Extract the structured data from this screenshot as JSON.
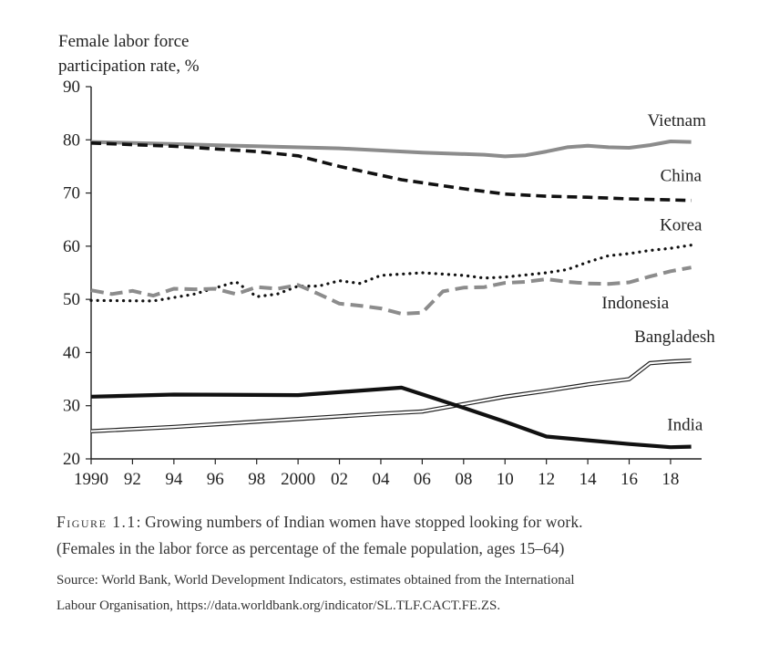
{
  "chart_data": {
    "type": "line",
    "ylabel": [
      "Female labor force",
      "participation rate, %"
    ],
    "ylim": [
      20,
      90
    ],
    "yticks": [
      20,
      30,
      40,
      50,
      60,
      70,
      80,
      90
    ],
    "xlim": [
      1990,
      2019.5
    ],
    "xticks": [
      {
        "value": 1990,
        "label": "1990"
      },
      {
        "value": 1992,
        "label": "92"
      },
      {
        "value": 1994,
        "label": "94"
      },
      {
        "value": 1996,
        "label": "96"
      },
      {
        "value": 1998,
        "label": "98"
      },
      {
        "value": 2000,
        "label": "2000"
      },
      {
        "value": 2002,
        "label": "02"
      },
      {
        "value": 2004,
        "label": "04"
      },
      {
        "value": 2006,
        "label": "06"
      },
      {
        "value": 2008,
        "label": "08"
      },
      {
        "value": 2010,
        "label": "10"
      },
      {
        "value": 2012,
        "label": "12"
      },
      {
        "value": 2014,
        "label": "14"
      },
      {
        "value": 2016,
        "label": "16"
      },
      {
        "value": 2018,
        "label": "18"
      }
    ],
    "series": [
      {
        "name": "Vietnam",
        "style": "solid-gray",
        "color": "#8c8c8c",
        "x": [
          1990,
          1994,
          1998,
          2002,
          2006,
          2009,
          2010,
          2011,
          2012,
          2013,
          2014,
          2015,
          2016,
          2017,
          2018,
          2019
        ],
        "y": [
          79.6,
          79.2,
          78.8,
          78.4,
          77.6,
          77.2,
          76.9,
          77.1,
          77.8,
          78.6,
          78.9,
          78.6,
          78.5,
          79.0,
          79.7,
          79.6
        ]
      },
      {
        "name": "China",
        "style": "dashed-black",
        "color": "#111111",
        "x": [
          1990,
          1994,
          1998,
          2000,
          2002,
          2005,
          2008,
          2010,
          2012,
          2014,
          2016,
          2018,
          2019
        ],
        "y": [
          79.4,
          78.8,
          77.8,
          77.0,
          75.0,
          72.5,
          70.8,
          69.8,
          69.4,
          69.2,
          68.9,
          68.7,
          68.6
        ],
        "label_anchor": [
          2018.5,
          72.2
        ]
      },
      {
        "name": "Korea",
        "style": "dotted-black",
        "color": "#111111",
        "x": [
          1990,
          1993,
          1995,
          1997,
          1998,
          1999,
          2000,
          2001,
          2002,
          2003,
          2004,
          2006,
          2008,
          2009,
          2010,
          2012,
          2013,
          2014,
          2015,
          2016,
          2017,
          2018,
          2019
        ],
        "y": [
          49.8,
          49.7,
          51.0,
          53.3,
          50.5,
          51.0,
          52.5,
          52.5,
          53.5,
          53.0,
          54.5,
          55.0,
          54.5,
          54.0,
          54.2,
          55.0,
          55.6,
          57.0,
          58.2,
          58.6,
          59.2,
          59.6,
          60.2
        ],
        "label_anchor": [
          2018.5,
          63.0
        ]
      },
      {
        "name": "Indonesia",
        "style": "dashed-gray",
        "color": "#8c8c8c",
        "x": [
          1990,
          1991,
          1992,
          1993,
          1994,
          1995,
          1996,
          1997,
          1998,
          1999,
          2000,
          2001,
          2002,
          2003,
          2004,
          2005,
          2006,
          2007,
          2008,
          2009,
          2010,
          2011,
          2012,
          2013,
          2014,
          2015,
          2016,
          2017,
          2018,
          2019
        ],
        "y": [
          51.7,
          51.0,
          51.6,
          50.7,
          52.0,
          51.9,
          52.0,
          51.0,
          52.3,
          52.0,
          52.7,
          51.0,
          49.2,
          48.8,
          48.3,
          47.3,
          47.5,
          51.5,
          52.2,
          52.3,
          53.1,
          53.3,
          53.8,
          53.3,
          53.0,
          52.9,
          53.2,
          54.3,
          55.3,
          56.0
        ],
        "label_anchor": [
          2016.3,
          48.3
        ]
      },
      {
        "name": "Bangladesh",
        "style": "double-line",
        "color": "#222222",
        "x": [
          1990,
          1994,
          1998,
          2002,
          2004,
          2006,
          2008,
          2010,
          2012,
          2014,
          2016,
          2017,
          2018,
          2019
        ],
        "y": [
          25.2,
          26.0,
          27.0,
          28.0,
          28.5,
          28.9,
          30.3,
          31.7,
          32.8,
          34.0,
          35.0,
          38.0,
          38.3,
          38.5
        ],
        "label_anchor": [
          2018.2,
          42.0
        ]
      },
      {
        "name": "India",
        "style": "solid-black-thick",
        "color": "#111111",
        "x": [
          1990,
          1994,
          2000,
          2005,
          2008,
          2010,
          2012,
          2014,
          2016,
          2018,
          2019
        ],
        "y": [
          31.7,
          32.1,
          32.0,
          33.4,
          29.6,
          27.0,
          24.2,
          23.5,
          22.8,
          22.2,
          22.3
        ],
        "label_anchor": [
          2018.7,
          25.4
        ]
      }
    ]
  },
  "caption": {
    "figure_label": "Figure 1.1",
    "title_text": ": Growing numbers of Indian women have stopped looking for work.",
    "subtitle": "(Females in the labor force as percentage of the female population, ages 15–64)",
    "source_line1": "Source: World Bank, World Development Indicators, estimates obtained from the International",
    "source_line2": "Labour Organisation, https://data.worldbank.org/indicator/SL.TLF.CACT.FE.ZS."
  }
}
